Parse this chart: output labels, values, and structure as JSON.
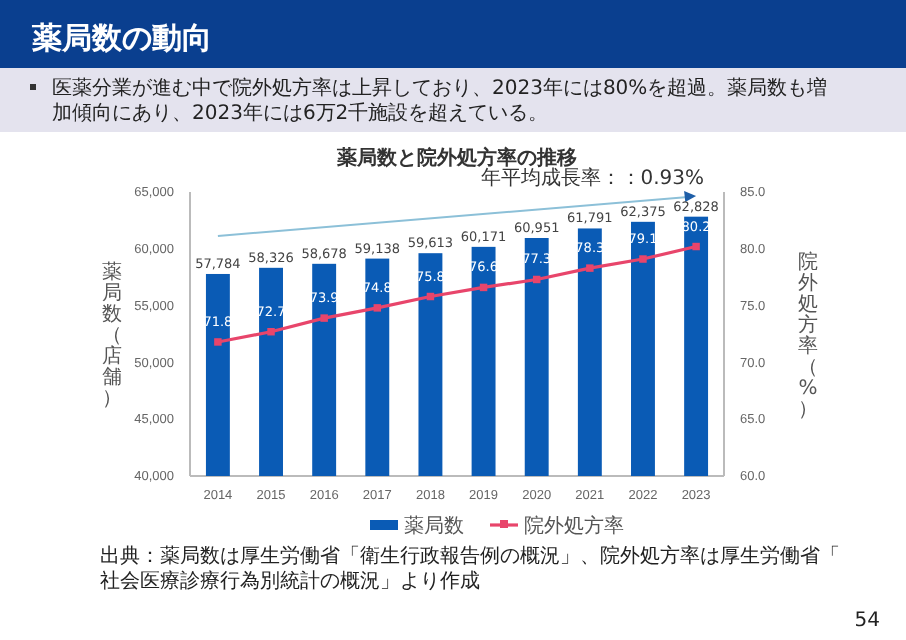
{
  "chart_data": {
    "type": "bar",
    "title": "薬局数の動向",
    "subtitle": "薬局数と院外処方率の推移",
    "ylabel": "薬局数（店舗）",
    "y2label": "院外処方率（%）",
    "categories": [
      "2014",
      "2015",
      "2016",
      "2017",
      "2018",
      "2019",
      "2020",
      "2021",
      "2022",
      "2023"
    ],
    "series": [
      {
        "name": "薬局数",
        "color": "#0a5bb5",
        "values": [
          57784,
          58326,
          58678,
          59138,
          59613,
          60171,
          60951,
          61791,
          62375,
          62828
        ],
        "value_labels": [
          "57,784",
          "58,326",
          "58,678",
          "59,138",
          "59,613",
          "60,171",
          "60,951",
          "61,791",
          "62,375",
          "62,828"
        ]
      },
      {
        "name": "院外処方率",
        "type": "line",
        "axis": "y2",
        "color": "#e8456b",
        "marker": "square",
        "values": [
          71.8,
          72.7,
          73.9,
          74.8,
          75.8,
          76.6,
          77.3,
          78.3,
          79.1,
          80.2
        ],
        "value_labels": [
          "71.8",
          "72.7",
          "73.9",
          "74.8",
          "75.8",
          "76.6",
          "77.3",
          "78.3",
          "79.1",
          "80.2"
        ]
      }
    ],
    "ylim": [
      40000,
      65000
    ],
    "yticks": [
      {
        "value": 40000,
        "label": "40,000"
      },
      {
        "value": 45000,
        "label": "45,000"
      },
      {
        "value": 50000,
        "label": "50,000"
      },
      {
        "value": 55000,
        "label": "55,000"
      },
      {
        "value": 60000,
        "label": "60,000"
      },
      {
        "value": 65000,
        "label": "65,000"
      }
    ],
    "y2lim": [
      60,
      85
    ],
    "y2ticks": [
      {
        "value": 60,
        "label": "60.0"
      },
      {
        "value": 65,
        "label": "65.0"
      },
      {
        "value": 70,
        "label": "70.0"
      },
      {
        "value": 75,
        "label": "75.0"
      },
      {
        "value": 80,
        "label": "80.0"
      },
      {
        "value": 85,
        "label": "85.0"
      }
    ],
    "grid": false,
    "legend": "bottom",
    "annotations": [
      "医薬分業が進む中で院外処方率は上昇しており、2023年には80%を超過。薬局数も増加傾向にあり、2023年には6万2千施設を超えている。",
      "年平均成長率：：0.93%",
      "出典：薬局数は厚生労働省「衛生行政報告例の概況」、院外処方率は厚生労働省「社会医療診療行為別統計の概況」より作成",
      "54"
    ]
  }
}
